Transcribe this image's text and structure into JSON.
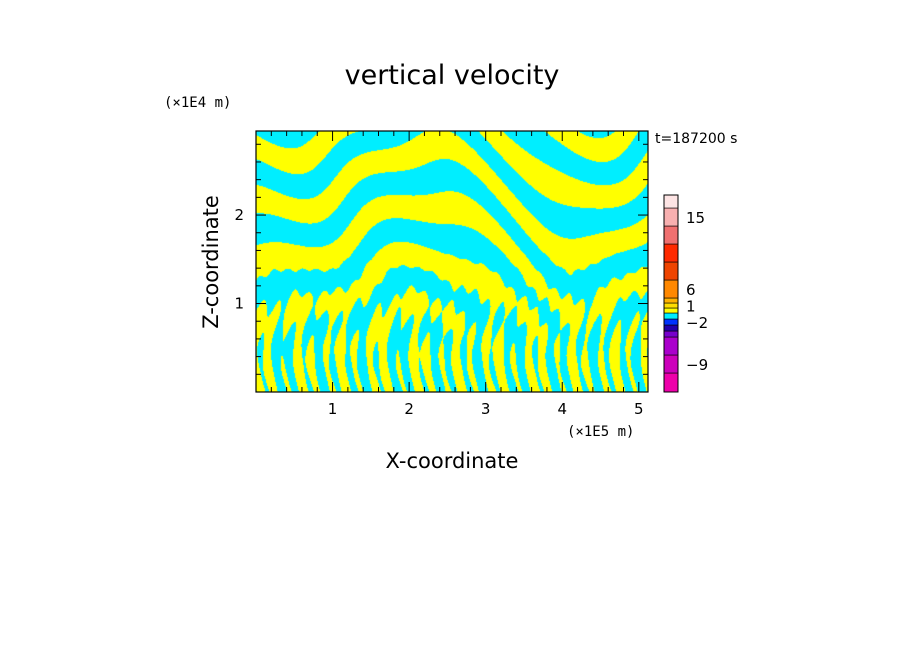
{
  "chart_data": {
    "type": "heatmap",
    "title": "vertical velocity",
    "xlabel": "X-coordinate",
    "ylabel": "Z-coordinate",
    "x_multiplier": "(×1E5 m)",
    "y_multiplier": "(×1E4 m)",
    "timestamp": "t=187200 s",
    "xlim": [
      0,
      5.12
    ],
    "ylim": [
      0,
      2.95
    ],
    "x_ticks": [
      {
        "value": 1,
        "label": "1"
      },
      {
        "value": 2,
        "label": "2"
      },
      {
        "value": 3,
        "label": "3"
      },
      {
        "value": 4,
        "label": "4"
      },
      {
        "value": 5,
        "label": "5"
      }
    ],
    "y_ticks": [
      {
        "value": 1,
        "label": "1"
      },
      {
        "value": 2,
        "label": "2"
      }
    ],
    "field_colors": {
      "positive": "#ffff00",
      "negative": "#00eeff"
    },
    "colorbar": {
      "levels": [
        {
          "color": "#ee00aa"
        },
        {
          "color": "#cc00bb"
        },
        {
          "color": "#aa00cc"
        },
        {
          "color": "#7700cc"
        },
        {
          "color": "#2200aa"
        },
        {
          "color": "#0033ff"
        },
        {
          "color": "#00eeff"
        },
        {
          "color": "#ffff00"
        },
        {
          "color": "#ffdd00"
        },
        {
          "color": "#ffb300"
        },
        {
          "color": "#ff8800"
        },
        {
          "color": "#ee4400"
        },
        {
          "color": "#ff2a00"
        },
        {
          "color": "#f07070"
        },
        {
          "color": "#f8b0b0"
        },
        {
          "color": "#fde4e4"
        }
      ],
      "labels": [
        {
          "text": "15",
          "level_index": 14
        },
        {
          "text": "6",
          "level_index": 10
        },
        {
          "text": "1",
          "level_index": 8
        },
        {
          "text": "−2",
          "level_index": 5
        },
        {
          "text": "−9",
          "level_index": 1
        }
      ]
    }
  }
}
